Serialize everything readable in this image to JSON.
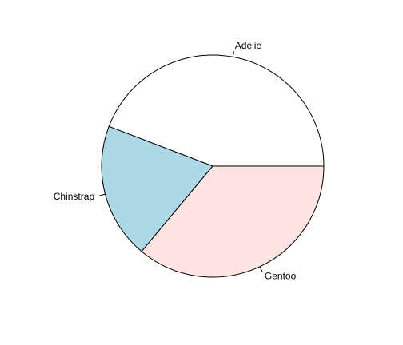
{
  "chart_data": {
    "type": "pie",
    "title": "",
    "start": "3 o'clock",
    "direction": "counterclockwise",
    "slices": [
      {
        "label": "Adelie",
        "value": 152,
        "color": "#ffffff"
      },
      {
        "label": "Chinstrap",
        "value": 68,
        "color": "#add8e6"
      },
      {
        "label": "Gentoo",
        "value": 124,
        "color": "#ffe4e1"
      }
    ]
  }
}
